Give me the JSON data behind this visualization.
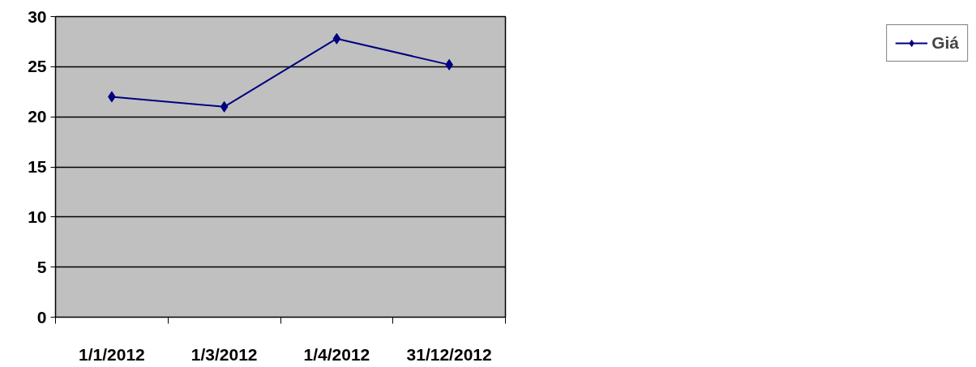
{
  "chart_data": {
    "type": "line",
    "categories": [
      "1/1/2012",
      "1/3/2012",
      "1/4/2012",
      "31/12/2012"
    ],
    "series": [
      {
        "name": "Giá",
        "color": "#000080",
        "values": [
          22,
          21,
          27.8,
          25.2
        ]
      }
    ],
    "ylim": [
      0,
      30
    ],
    "yticks": [
      0,
      5,
      10,
      15,
      20,
      25,
      30
    ],
    "grid": "y",
    "legend": "right",
    "marker": "diamond",
    "line_style": "solid"
  }
}
